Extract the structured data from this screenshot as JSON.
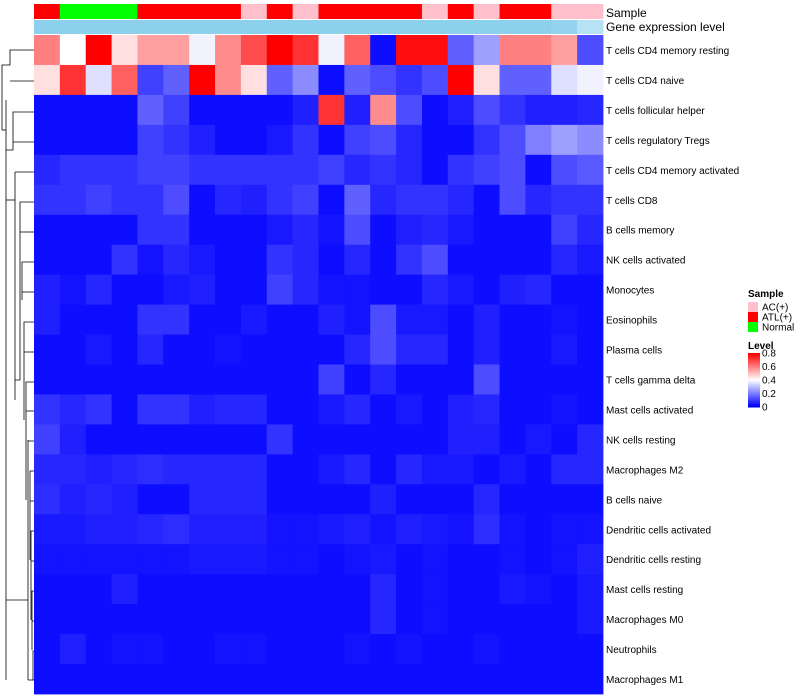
{
  "chart_data": {
    "type": "heatmap",
    "annotation_tracks": [
      {
        "name": "Sample"
      },
      {
        "name": "Gene expression level"
      }
    ],
    "sample_groups": [
      "ATL(+)",
      "Normal",
      "Normal",
      "Normal",
      "ATL(+)",
      "ATL(+)",
      "ATL(+)",
      "ATL(+)",
      "AC(+)",
      "ATL(+)",
      "AC(+)",
      "ATL(+)",
      "ATL(+)",
      "ATL(+)",
      "ATL(+)",
      "AC(+)",
      "ATL(+)",
      "AC(+)",
      "ATL(+)",
      "ATL(+)",
      "AC(+)",
      "AC(+)"
    ],
    "expression_levels": [
      0.95,
      0.95,
      0.95,
      0.95,
      0.95,
      0.95,
      0.95,
      0.95,
      0.95,
      0.95,
      0.95,
      0.95,
      0.95,
      0.95,
      0.95,
      0.95,
      0.95,
      0.95,
      0.95,
      0.95,
      0.9,
      0.6
    ],
    "rows": [
      "T cells CD4 memory resting",
      "T cells CD4 naive",
      "T cells follicular helper",
      "T cells regulatory  Tregs",
      "T cells CD4 memory activated",
      "T cells CD8",
      "B cells memory",
      "NK cells activated",
      "Monocytes",
      "Eosinophils",
      "Plasma cells",
      "T cells gamma delta",
      "Mast cells activated",
      "NK cells resting",
      "Macrophages M2",
      "B cells naive",
      "Dendritic cells activated",
      "Dendritic cells resting",
      "Mast cells resting",
      "Macrophages M0",
      "Neutrophils",
      "Macrophages M1"
    ],
    "values": [
      [
        0.6,
        0.4,
        0.8,
        0.45,
        0.55,
        0.55,
        0.38,
        0.58,
        0.68,
        0.8,
        0.72,
        0.38,
        0.65,
        0.02,
        0.78,
        0.78,
        0.15,
        0.25,
        0.6,
        0.6,
        0.55,
        0.12
      ],
      [
        0.45,
        0.72,
        0.35,
        0.65,
        0.1,
        0.15,
        0.8,
        0.58,
        0.45,
        0.15,
        0.22,
        0.02,
        0.15,
        0.12,
        0.08,
        0.12,
        0.8,
        0.45,
        0.15,
        0.15,
        0.35,
        0.38
      ],
      [
        0.02,
        0.02,
        0.02,
        0.02,
        0.15,
        0.1,
        0.02,
        0.02,
        0.02,
        0.02,
        0.05,
        0.72,
        0.05,
        0.58,
        0.12,
        0.02,
        0.05,
        0.12,
        0.08,
        0.05,
        0.05,
        0.06
      ],
      [
        0.02,
        0.02,
        0.02,
        0.02,
        0.1,
        0.08,
        0.05,
        0.02,
        0.02,
        0.04,
        0.08,
        0.02,
        0.1,
        0.12,
        0.06,
        0.02,
        0.02,
        0.08,
        0.12,
        0.2,
        0.25,
        0.22
      ],
      [
        0.06,
        0.08,
        0.08,
        0.08,
        0.1,
        0.1,
        0.08,
        0.08,
        0.08,
        0.08,
        0.08,
        0.1,
        0.06,
        0.08,
        0.06,
        0.02,
        0.08,
        0.1,
        0.12,
        0.02,
        0.12,
        0.14
      ],
      [
        0.08,
        0.08,
        0.1,
        0.08,
        0.08,
        0.12,
        0.02,
        0.06,
        0.05,
        0.08,
        0.1,
        0.02,
        0.15,
        0.06,
        0.08,
        0.08,
        0.06,
        0.02,
        0.12,
        0.06,
        0.08,
        0.08
      ],
      [
        0.02,
        0.02,
        0.02,
        0.02,
        0.08,
        0.08,
        0.02,
        0.02,
        0.02,
        0.04,
        0.06,
        0.03,
        0.12,
        0.02,
        0.05,
        0.06,
        0.04,
        0.02,
        0.02,
        0.02,
        0.1,
        0.06
      ],
      [
        0.02,
        0.02,
        0.02,
        0.08,
        0.03,
        0.06,
        0.04,
        0.02,
        0.02,
        0.08,
        0.06,
        0.02,
        0.06,
        0.02,
        0.08,
        0.12,
        0.02,
        0.02,
        0.02,
        0.02,
        0.06,
        0.04
      ],
      [
        0.05,
        0.03,
        0.06,
        0.02,
        0.02,
        0.04,
        0.05,
        0.02,
        0.02,
        0.1,
        0.06,
        0.03,
        0.03,
        0.02,
        0.02,
        0.06,
        0.04,
        0.02,
        0.05,
        0.06,
        0.02,
        0.02
      ],
      [
        0.05,
        0.02,
        0.02,
        0.02,
        0.08,
        0.08,
        0.02,
        0.02,
        0.04,
        0.02,
        0.02,
        0.05,
        0.03,
        0.12,
        0.04,
        0.04,
        0.02,
        0.05,
        0.02,
        0.02,
        0.03,
        0.02
      ],
      [
        0.02,
        0.02,
        0.04,
        0.02,
        0.06,
        0.02,
        0.02,
        0.03,
        0.02,
        0.02,
        0.02,
        0.02,
        0.06,
        0.12,
        0.06,
        0.06,
        0.02,
        0.05,
        0.02,
        0.02,
        0.04,
        0.02
      ],
      [
        0.02,
        0.02,
        0.02,
        0.02,
        0.02,
        0.02,
        0.02,
        0.02,
        0.02,
        0.02,
        0.02,
        0.1,
        0.02,
        0.06,
        0.02,
        0.02,
        0.02,
        0.12,
        0.02,
        0.02,
        0.02,
        0.02
      ],
      [
        0.08,
        0.06,
        0.08,
        0.02,
        0.08,
        0.08,
        0.05,
        0.06,
        0.06,
        0.02,
        0.02,
        0.04,
        0.06,
        0.02,
        0.04,
        0.02,
        0.05,
        0.06,
        0.02,
        0.02,
        0.03,
        0.02
      ],
      [
        0.1,
        0.05,
        0.02,
        0.02,
        0.02,
        0.02,
        0.02,
        0.02,
        0.02,
        0.08,
        0.02,
        0.02,
        0.02,
        0.02,
        0.02,
        0.02,
        0.05,
        0.05,
        0.02,
        0.04,
        0.02,
        0.06
      ],
      [
        0.06,
        0.06,
        0.05,
        0.06,
        0.07,
        0.06,
        0.06,
        0.06,
        0.06,
        0.02,
        0.02,
        0.04,
        0.06,
        0.02,
        0.06,
        0.04,
        0.04,
        0.02,
        0.04,
        0.02,
        0.06,
        0.06
      ],
      [
        0.07,
        0.05,
        0.06,
        0.05,
        0.02,
        0.02,
        0.06,
        0.06,
        0.06,
        0.02,
        0.02,
        0.02,
        0.02,
        0.05,
        0.02,
        0.02,
        0.02,
        0.06,
        0.02,
        0.02,
        0.02,
        0.02
      ],
      [
        0.04,
        0.04,
        0.05,
        0.05,
        0.06,
        0.07,
        0.05,
        0.05,
        0.05,
        0.03,
        0.03,
        0.04,
        0.05,
        0.03,
        0.05,
        0.04,
        0.03,
        0.07,
        0.03,
        0.02,
        0.03,
        0.03
      ],
      [
        0.03,
        0.03,
        0.03,
        0.03,
        0.03,
        0.03,
        0.04,
        0.04,
        0.04,
        0.03,
        0.03,
        0.02,
        0.03,
        0.04,
        0.02,
        0.03,
        0.02,
        0.02,
        0.03,
        0.02,
        0.03,
        0.05
      ],
      [
        0.02,
        0.02,
        0.02,
        0.05,
        0.02,
        0.02,
        0.02,
        0.02,
        0.02,
        0.02,
        0.02,
        0.02,
        0.02,
        0.06,
        0.02,
        0.03,
        0.02,
        0.02,
        0.04,
        0.03,
        0.02,
        0.04
      ],
      [
        0.02,
        0.02,
        0.02,
        0.02,
        0.02,
        0.02,
        0.02,
        0.02,
        0.02,
        0.02,
        0.02,
        0.02,
        0.02,
        0.06,
        0.02,
        0.03,
        0.02,
        0.02,
        0.02,
        0.02,
        0.02,
        0.04
      ],
      [
        0.02,
        0.05,
        0.02,
        0.03,
        0.03,
        0.02,
        0.02,
        0.03,
        0.03,
        0.02,
        0.02,
        0.02,
        0.03,
        0.02,
        0.03,
        0.02,
        0.02,
        0.03,
        0.02,
        0.02,
        0.02,
        0.02
      ],
      [
        0.02,
        0.02,
        0.02,
        0.02,
        0.02,
        0.02,
        0.02,
        0.02,
        0.02,
        0.02,
        0.02,
        0.02,
        0.02,
        0.02,
        0.02,
        0.02,
        0.02,
        0.02,
        0.02,
        0.02,
        0.02,
        0.02
      ]
    ],
    "legend_sample": {
      "title": "Sample",
      "entries": [
        {
          "label": "AC(+)",
          "color": "#ffc0cb"
        },
        {
          "label": "ATL(+)",
          "color": "#ff0000"
        },
        {
          "label": "Normal",
          "color": "#00ff00"
        }
      ]
    },
    "legend_level": {
      "title": "Level",
      "ticks": [
        "0.8",
        "0.6",
        "0.4",
        "0.2",
        "0"
      ]
    },
    "color_scale": {
      "low": "#0000ff",
      "mid": "#ffffff",
      "high": "#ff0000",
      "min": 0,
      "mid_value": 0.4,
      "max": 0.8
    },
    "expression_colors": {
      "low": "#ffffff",
      "high": "#87ceeb"
    }
  }
}
